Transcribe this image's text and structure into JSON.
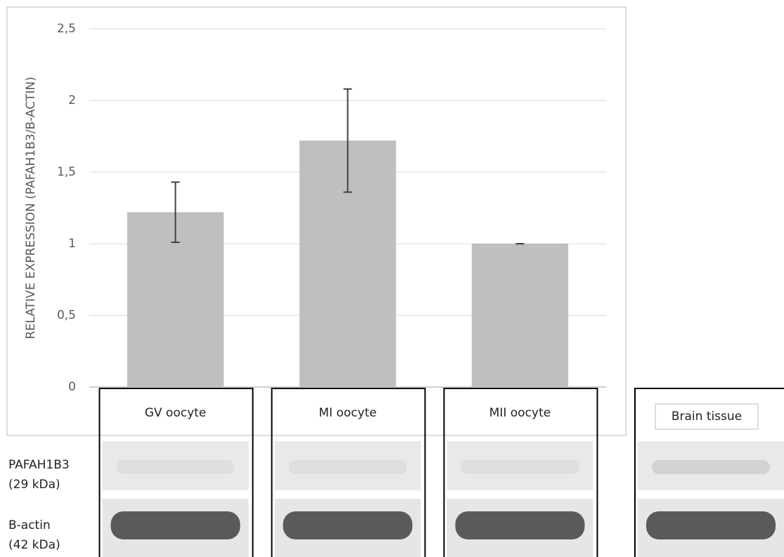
{
  "chart_data": {
    "type": "bar",
    "y_label": "RELATIVE EXPRESSION (PAFAH1B3/B-ACTIN)",
    "categories": [
      "GV oocyte",
      "MI oocyte",
      "MII oocyte"
    ],
    "values": [
      1.22,
      1.72,
      1.0
    ],
    "errors": [
      0.21,
      0.36,
      0.0
    ],
    "color": "#bfbfbf",
    "ylim": [
      0,
      2.5
    ],
    "yticks": [
      0,
      {
        "value": 0.5,
        "label": "0,5"
      },
      1,
      {
        "value": 1.5,
        "label": "1,5"
      },
      2,
      {
        "value": 2.5,
        "label": "2,5"
      }
    ],
    "grid": true
  },
  "blot": {
    "rows": [
      {
        "name": "PAFAH1B3",
        "size": "(29 kDa)"
      },
      {
        "name": "B-actin",
        "size": "(42 kDa)"
      }
    ],
    "extra_lane": "Brain tissue"
  }
}
